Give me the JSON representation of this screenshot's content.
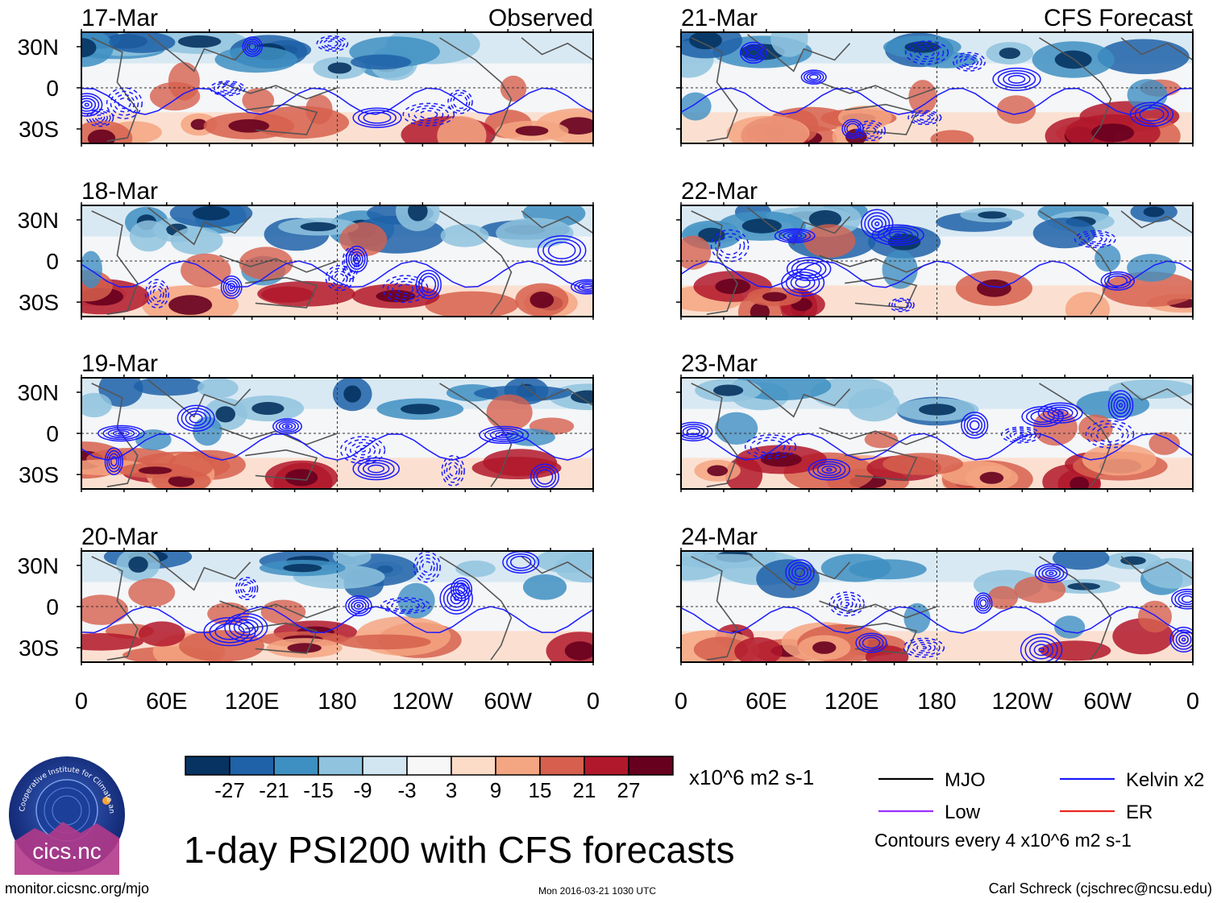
{
  "panels": [
    {
      "date": "17-Mar",
      "label": "Observed",
      "column": "left",
      "row": 0,
      "seed": 17
    },
    {
      "date": "18-Mar",
      "label": "",
      "column": "left",
      "row": 1,
      "seed": 18
    },
    {
      "date": "19-Mar",
      "label": "",
      "column": "left",
      "row": 2,
      "seed": 19
    },
    {
      "date": "20-Mar",
      "label": "",
      "column": "left",
      "row": 3,
      "seed": 20
    },
    {
      "date": "21-Mar",
      "label": "CFS Forecast",
      "column": "right",
      "row": 0,
      "seed": 21
    },
    {
      "date": "22-Mar",
      "label": "",
      "column": "right",
      "row": 1,
      "seed": 22
    },
    {
      "date": "23-Mar",
      "label": "",
      "column": "right",
      "row": 2,
      "seed": 23
    },
    {
      "date": "24-Mar",
      "label": "",
      "column": "right",
      "row": 3,
      "seed": 24
    }
  ],
  "latitude_labels": [
    "30N",
    "0",
    "30S"
  ],
  "longitude_labels": [
    "0",
    "60E",
    "120E",
    "180",
    "120W",
    "60W",
    "0"
  ],
  "colorbar": {
    "colors": [
      "#063361",
      "#1f62a8",
      "#3e8fc2",
      "#8fc3de",
      "#d2e6f1",
      "#f7f7f7",
      "#fcdbc7",
      "#f4a581",
      "#d6604d",
      "#b2182b",
      "#67001f"
    ],
    "tick_labels": [
      "-27",
      "-21",
      "-15",
      "-9",
      "-3",
      "3",
      "9",
      "15",
      "21",
      "27"
    ],
    "units": "x10^6 m2 s-1"
  },
  "legend": {
    "items": [
      {
        "label": "MJO",
        "color": "#000000"
      },
      {
        "label": "Kelvin x2",
        "color": "#1a1aff"
      },
      {
        "label": "Low",
        "color": "#9b30ff"
      },
      {
        "label": "ER",
        "color": "#e8281e"
      }
    ],
    "contour_note": "Contours every 4 x10^6 m2 s-1"
  },
  "title": "1-day PSI200 with CFS forecasts",
  "logo": {
    "text": "cics.nc",
    "ring_text": "Cooperative Institute for Climate and Satellites"
  },
  "footer": {
    "url": "monitor.cicsnc.org/mjo",
    "timestamp": "Mon 2016-03-21 1030 UTC",
    "author": "Carl Schreck (cjschrec@ncsu.edu)"
  }
}
